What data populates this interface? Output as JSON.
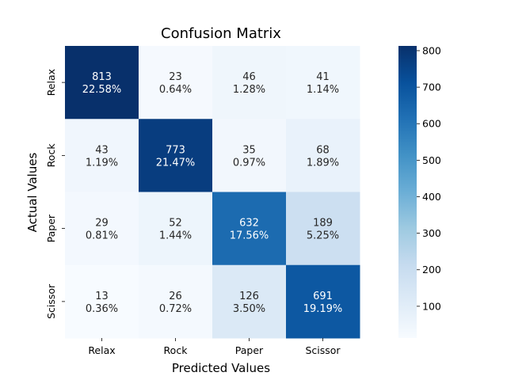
{
  "chart_data": {
    "type": "heatmap",
    "title": "Confusion Matrix",
    "xlabel": "Predicted Values",
    "ylabel": "Actual Values",
    "x_categories": [
      "Relax",
      "Rock",
      "Paper",
      "Scissor"
    ],
    "y_categories": [
      "Relax",
      "Rock",
      "Paper",
      "Scissor"
    ],
    "values": [
      [
        813,
        23,
        46,
        41
      ],
      [
        43,
        773,
        35,
        68
      ],
      [
        29,
        52,
        632,
        189
      ],
      [
        13,
        26,
        126,
        691
      ]
    ],
    "percents": [
      [
        "22.58%",
        "0.64%",
        "1.28%",
        "1.14%"
      ],
      [
        "1.19%",
        "21.47%",
        "0.97%",
        "1.89%"
      ],
      [
        "0.81%",
        "1.44%",
        "17.56%",
        "5.25%"
      ],
      [
        "0.36%",
        "0.72%",
        "3.50%",
        "19.19%"
      ]
    ],
    "colormap": "Blues",
    "colorbar": {
      "min": 13,
      "max": 813,
      "ticks": [
        100,
        200,
        300,
        400,
        500,
        600,
        700,
        800
      ]
    },
    "legend": "none",
    "grid": false
  }
}
